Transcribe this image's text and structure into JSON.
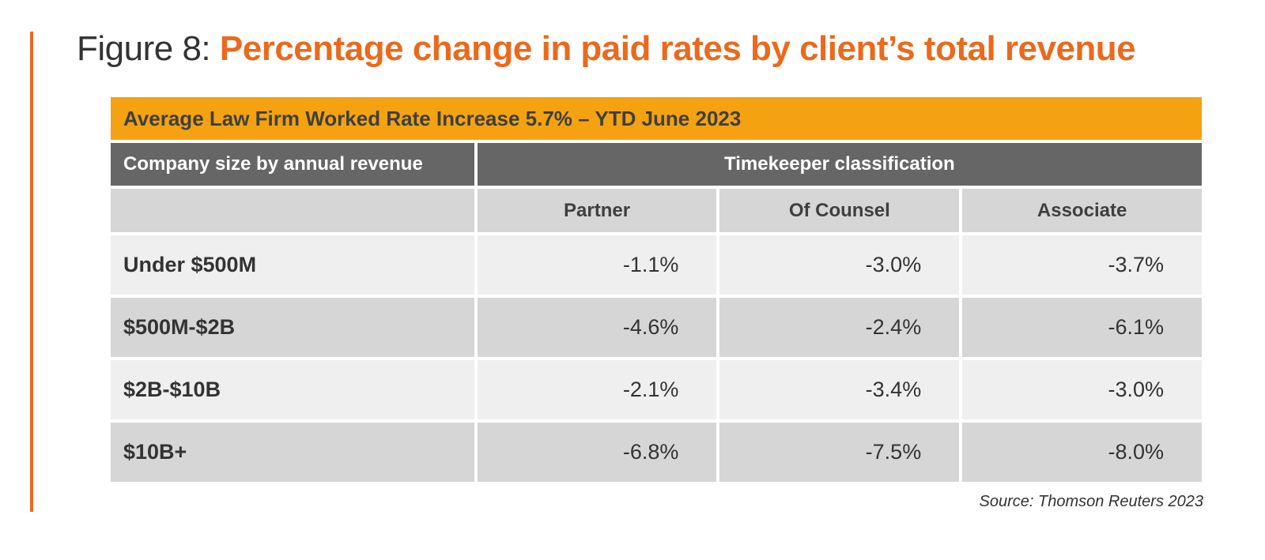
{
  "figure": {
    "prefix": "Figure 8: ",
    "title": "Percentage change in paid rates by client’s total revenue"
  },
  "chart_data": {
    "type": "table",
    "title": "Percentage change in paid rates by client’s total revenue",
    "banner": "Average Law Firm Worked Rate Increase 5.7% – YTD June 2023",
    "row_header_label": "Company size by annual revenue",
    "column_group_label": "Timekeeper classification",
    "columns": [
      "Partner",
      "Of Counsel",
      "Associate"
    ],
    "rows": [
      {
        "label": "Under $500M",
        "values": [
          "-1.1%",
          "-3.0%",
          "-3.7%"
        ]
      },
      {
        "label": "$500M-$2B",
        "values": [
          "-4.6%",
          "-2.4%",
          "-6.1%"
        ]
      },
      {
        "label": "$2B-$10B",
        "values": [
          "-2.1%",
          "-3.4%",
          "-3.0%"
        ]
      },
      {
        "label": "$10B+",
        "values": [
          "-6.8%",
          "-7.5%",
          "-8.0%"
        ]
      }
    ],
    "numeric_values": {
      "Partner": [
        -1.1,
        -4.6,
        -2.1,
        -6.8
      ],
      "Of Counsel": [
        -3.0,
        -2.4,
        -3.4,
        -7.5
      ],
      "Associate": [
        -3.7,
        -6.1,
        -3.0,
        -8.0
      ]
    },
    "source": "Source: Thomson Reuters 2023"
  },
  "colors": {
    "accent": "#ea6a1d",
    "banner": "#f4a212",
    "header": "#666666",
    "row_light": "#efefef",
    "row_dark": "#d6d6d6"
  }
}
